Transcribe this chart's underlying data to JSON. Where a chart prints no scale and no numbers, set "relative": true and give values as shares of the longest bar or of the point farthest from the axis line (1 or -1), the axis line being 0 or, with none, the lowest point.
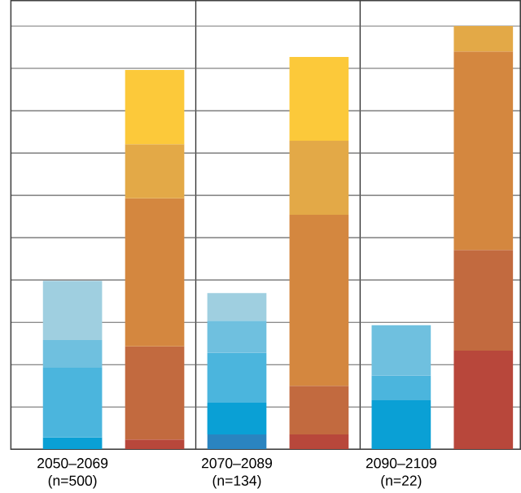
{
  "chart_data": {
    "type": "bar",
    "stacked": true,
    "relative": true,
    "grid": true,
    "categories": [
      "2050–2069 (n=500)",
      null,
      "2070–2089 (n=134)",
      null,
      "2090–2109 (n=22)",
      null
    ],
    "series": [
      {
        "color": "#2a84c0",
        "values": [
          null,
          null,
          0.035,
          null,
          null,
          null
        ]
      },
      {
        "color": "#0aa0d5",
        "values": [
          0.028,
          null,
          0.075,
          null,
          0.116,
          null
        ]
      },
      {
        "color": "#4bb5dd",
        "values": [
          0.165,
          null,
          0.118,
          null,
          0.058,
          null
        ]
      },
      {
        "color": "#6fc0df",
        "values": [
          0.065,
          null,
          0.076,
          null,
          0.119,
          null
        ]
      },
      {
        "color": "#9fcfe0",
        "values": [
          0.14,
          null,
          0.065,
          null,
          null,
          null
        ]
      },
      {
        "color": "#b8473b",
        "values": [
          null,
          0.023,
          null,
          0.035,
          null,
          0.233
        ]
      },
      {
        "color": "#c26a3f",
        "values": [
          null,
          0.22,
          null,
          0.115,
          null,
          0.238
        ]
      },
      {
        "color": "#d4873f",
        "values": [
          null,
          0.35,
          null,
          0.404,
          null,
          0.469
        ]
      },
      {
        "color": "#e3a947",
        "values": [
          null,
          0.128,
          null,
          0.175,
          null,
          0.06
        ]
      },
      {
        "color": "#fcc93a",
        "values": [
          null,
          0.175,
          null,
          0.198,
          null,
          null
        ]
      }
    ]
  }
}
